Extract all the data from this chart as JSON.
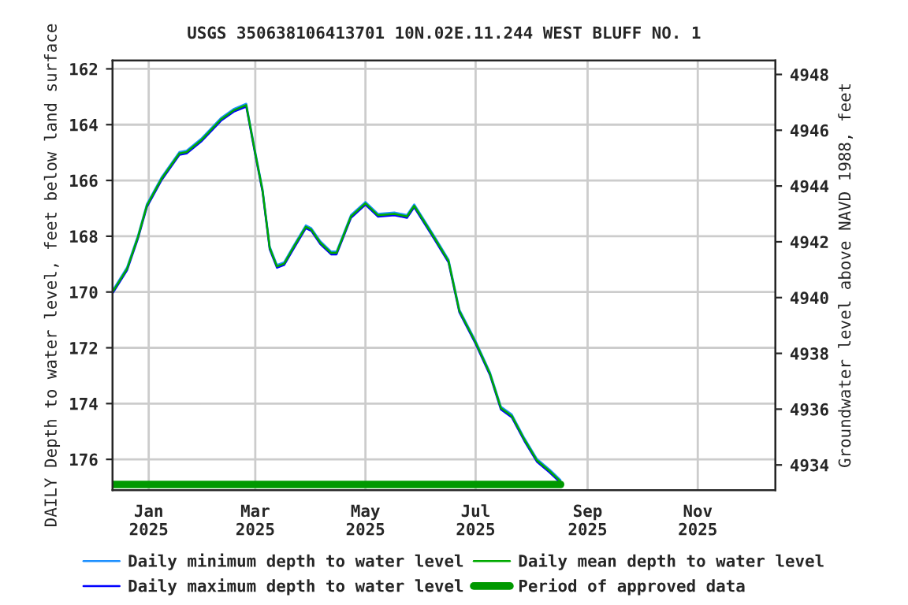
{
  "chart_data": {
    "type": "line",
    "title": "USGS 350638106413701 10N.02E.11.244 WEST BLUFF NO. 1",
    "ylabel": "DAILY Depth to water level, feet below land surface",
    "y2label": "Groundwater level above NAVD 1988, feet",
    "x": [
      "2024-12-12",
      "2024-12-20",
      "2024-12-26",
      "2024-12-31",
      "2025-01-08",
      "2025-01-18",
      "2025-01-22",
      "2025-01-30",
      "2025-02-10",
      "2025-02-17",
      "2025-02-24",
      "2025-03-01",
      "2025-03-05",
      "2025-03-09",
      "2025-03-13",
      "2025-03-17",
      "2025-03-22",
      "2025-03-29",
      "2025-04-01",
      "2025-04-06",
      "2025-04-12",
      "2025-04-15",
      "2025-04-23",
      "2025-05-01",
      "2025-05-08",
      "2025-05-17",
      "2025-05-24",
      "2025-05-28",
      "2025-06-08",
      "2025-06-16",
      "2025-06-22",
      "2025-07-01",
      "2025-07-09",
      "2025-07-15",
      "2025-07-21",
      "2025-07-28",
      "2025-08-04",
      "2025-08-11",
      "2025-08-17"
    ],
    "series": [
      {
        "name": "Daily minimum depth to water level",
        "color": "#1e90ff",
        "values": [
          169.95,
          169.12,
          167.99,
          166.85,
          165.9,
          164.98,
          164.93,
          164.51,
          163.76,
          163.44,
          163.25,
          164.98,
          166.3,
          168.37,
          169.03,
          168.93,
          168.37,
          167.61,
          167.71,
          168.18,
          168.55,
          168.55,
          167.24,
          166.77,
          167.2,
          167.15,
          167.24,
          166.86,
          167.99,
          168.84,
          170.63,
          171.76,
          172.89,
          174.11,
          174.39,
          175.24,
          175.99,
          176.37,
          176.74
        ]
      },
      {
        "name": "Daily maximum depth to water level",
        "color": "#0000ff",
        "values": [
          170.05,
          169.22,
          168.09,
          166.95,
          166.0,
          165.08,
          165.03,
          164.61,
          163.86,
          163.54,
          163.35,
          165.08,
          166.4,
          168.47,
          169.13,
          169.03,
          168.47,
          167.71,
          167.81,
          168.28,
          168.65,
          168.65,
          167.34,
          166.87,
          167.3,
          167.25,
          167.34,
          166.96,
          168.09,
          168.94,
          170.73,
          171.86,
          172.99,
          174.21,
          174.49,
          175.34,
          176.09,
          176.47,
          176.84
        ]
      },
      {
        "name": "Daily mean depth to water level",
        "color": "#00aa00",
        "values": [
          170.0,
          169.17,
          168.04,
          166.9,
          165.95,
          165.03,
          164.98,
          164.56,
          163.81,
          163.49,
          163.3,
          165.03,
          166.35,
          168.42,
          169.08,
          168.98,
          168.42,
          167.66,
          167.76,
          168.23,
          168.6,
          168.6,
          167.29,
          166.82,
          167.25,
          167.2,
          167.29,
          166.91,
          168.04,
          168.89,
          170.68,
          171.81,
          172.94,
          174.16,
          174.44,
          175.29,
          176.04,
          176.42,
          176.79
        ]
      },
      {
        "name": "Period of approved data",
        "color": "#009900",
        "x": [
          "2024-12-12",
          "2025-08-17"
        ],
        "values": [
          176.9,
          176.9
        ]
      }
    ],
    "xlim": [
      "2024-12-12",
      "2025-12-14"
    ],
    "xticks": [
      {
        "value": "2025-01-01",
        "label": "Jan\n2025"
      },
      {
        "value": "2025-03-01",
        "label": "Mar\n2025"
      },
      {
        "value": "2025-05-01",
        "label": "May\n2025"
      },
      {
        "value": "2025-07-01",
        "label": "Jul\n2025"
      },
      {
        "value": "2025-09-01",
        "label": "Sep\n2025"
      },
      {
        "value": "2025-11-01",
        "label": "Nov\n2025"
      }
    ],
    "ylim": [
      177.1,
      161.7
    ],
    "yticks": [
      162,
      164,
      166,
      168,
      170,
      172,
      174,
      176
    ],
    "y2lim": [
      4933.1,
      4948.5
    ],
    "y2ticks": [
      4934,
      4936,
      4938,
      4940,
      4942,
      4944,
      4946,
      4948
    ],
    "grid": true,
    "legend": "bottom"
  }
}
